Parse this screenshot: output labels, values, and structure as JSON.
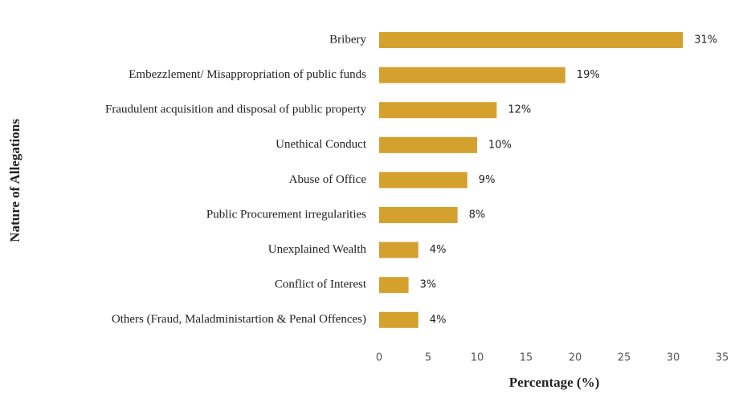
{
  "chart_data": {
    "type": "bar",
    "orientation": "horizontal",
    "x_label": "Percentage (%)",
    "y_label": "Nature of Allegations",
    "categories": [
      "Bribery",
      "Embezzlement/ Misappropriation of public funds",
      "Fraudulent acquisition and disposal of public property",
      "Unethical Conduct",
      "Abuse of Office",
      "Public Procurement irregularities",
      "Unexplained Wealth",
      "Conflict of Interest",
      "Others (Fraud, Maladministartion & Penal Offences)"
    ],
    "values": [
      31,
      19,
      12,
      10,
      9,
      8,
      4,
      3,
      4
    ],
    "value_labels": [
      "31%",
      "19%",
      "12%",
      "10%",
      "9%",
      "8%",
      "4%",
      "3%",
      "4%"
    ],
    "color": "#d4a12e",
    "xlim": [
      0,
      35
    ],
    "xticks": [
      0,
      5,
      10,
      15,
      20,
      25,
      30,
      35
    ],
    "grid": false
  }
}
